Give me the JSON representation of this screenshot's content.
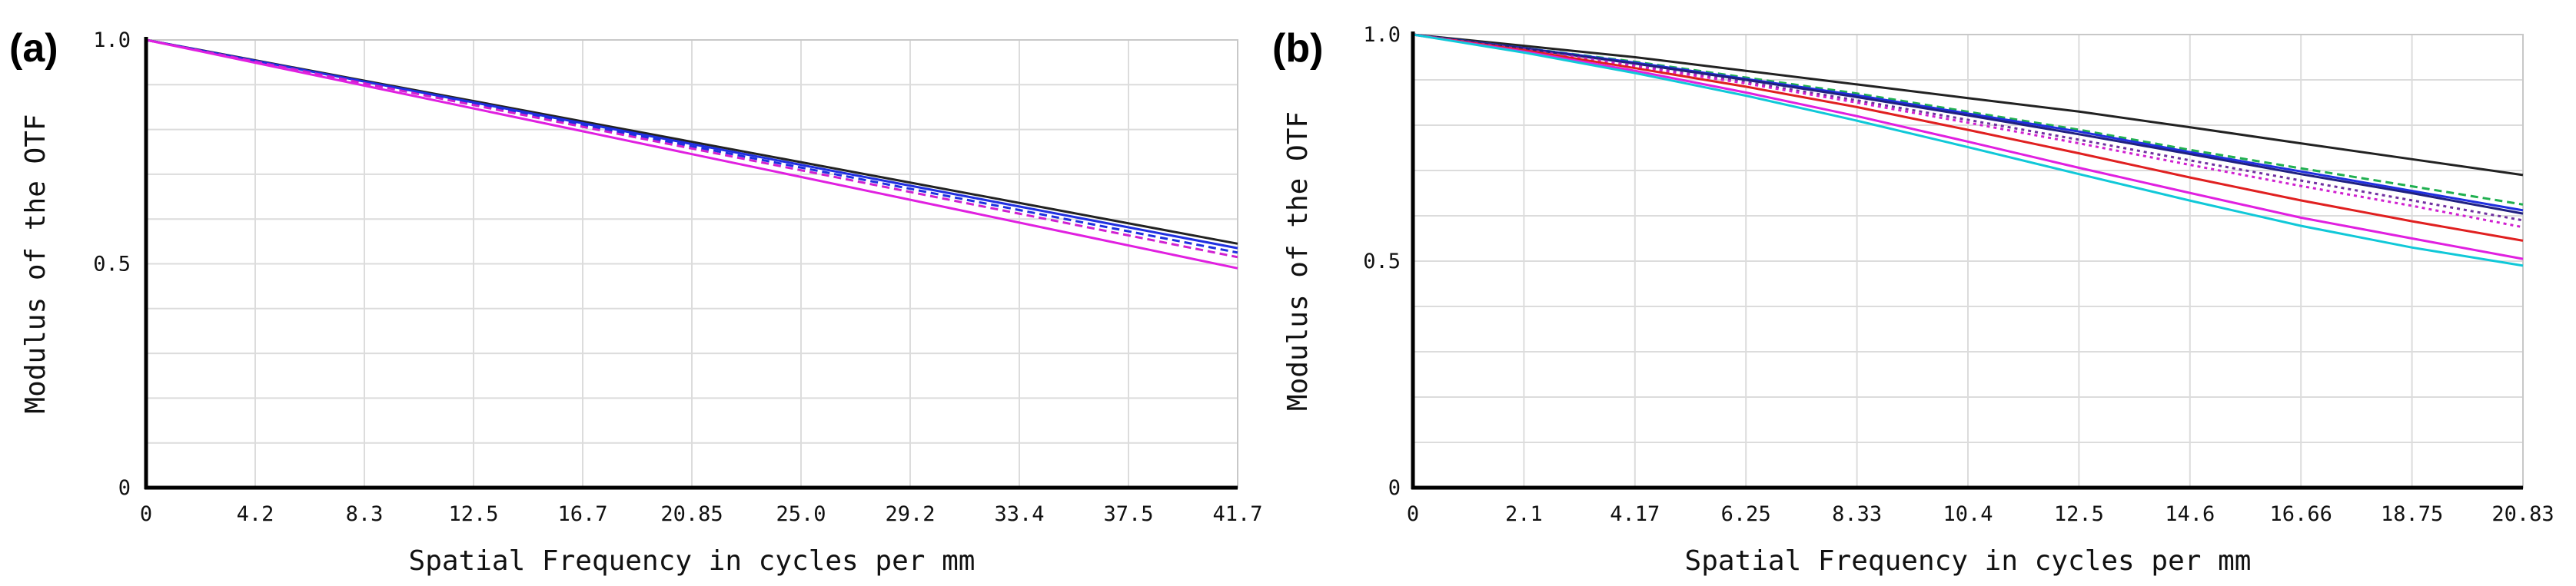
{
  "chart_data": [
    {
      "type": "line",
      "panel_label": "(a)",
      "xlabel": "Spatial Frequency in cycles per mm",
      "ylabel": "Modulus of the OTF",
      "xlim": [
        0,
        41.7
      ],
      "ylim": [
        0,
        1.0
      ],
      "x_ticks": [
        "0",
        "4.2",
        "8.3",
        "12.5",
        "16.7",
        "20.85",
        "25.0",
        "29.2",
        "33.4",
        "37.5",
        "41.7"
      ],
      "y_ticks": [
        {
          "value": 0,
          "label": "0"
        },
        {
          "value": 0.5,
          "label": "0.5"
        },
        {
          "value": 1.0,
          "label": "1.0"
        }
      ],
      "grid": true,
      "series": [
        {
          "name": "black",
          "color": "#222222",
          "dash": "solid",
          "x": [
            0,
            41.7
          ],
          "y": [
            1.0,
            0.545
          ]
        },
        {
          "name": "blue",
          "color": "#1f2fe0",
          "dash": "solid",
          "x": [
            0,
            41.7
          ],
          "y": [
            1.0,
            0.535
          ]
        },
        {
          "name": "blue-dashed",
          "color": "#1f2fe0",
          "dash": "dashed",
          "x": [
            0,
            41.7
          ],
          "y": [
            1.0,
            0.525
          ]
        },
        {
          "name": "magenta-dashed",
          "color": "#d020d0",
          "dash": "dashed",
          "x": [
            0,
            41.7
          ],
          "y": [
            1.0,
            0.515
          ]
        },
        {
          "name": "magenta",
          "color": "#e020e0",
          "dash": "solid",
          "x": [
            0,
            41.7
          ],
          "y": [
            1.0,
            0.49
          ]
        }
      ]
    },
    {
      "type": "line",
      "panel_label": "(b)",
      "xlabel": "Spatial Frequency in cycles per mm",
      "ylabel": "Modulus of the OTF",
      "xlim": [
        0,
        20.83
      ],
      "ylim": [
        0,
        1.0
      ],
      "x_ticks": [
        "0",
        "2.1",
        "4.17",
        "6.25",
        "8.33",
        "10.4",
        "12.5",
        "14.6",
        "16.66",
        "18.75",
        "20.83"
      ],
      "y_ticks": [
        {
          "value": 0,
          "label": "0"
        },
        {
          "value": 0.5,
          "label": "0.5"
        },
        {
          "value": 1.0,
          "label": "1.0"
        }
      ],
      "grid": true,
      "series": [
        {
          "name": "black",
          "color": "#222222",
          "dash": "solid",
          "x": [
            0,
            2.1,
            4.17,
            6.25,
            8.33,
            10.4,
            12.5,
            14.6,
            16.66,
            18.75,
            20.83
          ],
          "y": [
            1.0,
            0.975,
            0.95,
            0.92,
            0.89,
            0.86,
            0.83,
            0.795,
            0.76,
            0.725,
            0.69
          ]
        },
        {
          "name": "green-dashed",
          "color": "#20b050",
          "dash": "dashed",
          "x": [
            0,
            2.1,
            4.17,
            6.25,
            8.33,
            10.4,
            12.5,
            14.6,
            16.66,
            18.75,
            20.83
          ],
          "y": [
            1.0,
            0.97,
            0.94,
            0.905,
            0.87,
            0.83,
            0.79,
            0.745,
            0.705,
            0.665,
            0.625
          ]
        },
        {
          "name": "blue",
          "color": "#1f2fe0",
          "dash": "solid",
          "x": [
            0,
            2.1,
            4.17,
            6.25,
            8.33,
            10.4,
            12.5,
            14.6,
            16.66,
            18.75,
            20.83
          ],
          "y": [
            1.0,
            0.97,
            0.938,
            0.902,
            0.866,
            0.826,
            0.786,
            0.74,
            0.698,
            0.655,
            0.612
          ]
        },
        {
          "name": "navy",
          "color": "#202080",
          "dash": "solid",
          "x": [
            0,
            2.1,
            4.17,
            6.25,
            8.33,
            10.4,
            12.5,
            14.6,
            16.66,
            18.75,
            20.83
          ],
          "y": [
            1.0,
            0.969,
            0.936,
            0.9,
            0.862,
            0.822,
            0.78,
            0.736,
            0.692,
            0.65,
            0.605
          ]
        },
        {
          "name": "purple-dotted",
          "color": "#7030a0",
          "dash": "dotted",
          "x": [
            0,
            2.1,
            4.17,
            6.25,
            8.33,
            10.4,
            12.5,
            14.6,
            16.66,
            18.75,
            20.83
          ],
          "y": [
            1.0,
            0.967,
            0.932,
            0.895,
            0.855,
            0.812,
            0.768,
            0.722,
            0.678,
            0.634,
            0.59
          ]
        },
        {
          "name": "magenta-dotted",
          "color": "#d020d0",
          "dash": "dotted",
          "x": [
            0,
            2.1,
            4.17,
            6.25,
            8.33,
            10.4,
            12.5,
            14.6,
            16.66,
            18.75,
            20.83
          ],
          "y": [
            1.0,
            0.966,
            0.93,
            0.892,
            0.85,
            0.806,
            0.76,
            0.712,
            0.666,
            0.622,
            0.575
          ]
        },
        {
          "name": "red",
          "color": "#e02020",
          "dash": "solid",
          "x": [
            0,
            2.1,
            4.17,
            6.25,
            8.33,
            10.4,
            12.5,
            14.6,
            16.66,
            18.75,
            20.83
          ],
          "y": [
            1.0,
            0.965,
            0.926,
            0.885,
            0.84,
            0.79,
            0.738,
            0.684,
            0.634,
            0.588,
            0.545
          ]
        },
        {
          "name": "magenta",
          "color": "#e020e0",
          "dash": "solid",
          "x": [
            0,
            2.1,
            4.17,
            6.25,
            8.33,
            10.4,
            12.5,
            14.6,
            16.66,
            18.75,
            20.83
          ],
          "y": [
            1.0,
            0.962,
            0.92,
            0.872,
            0.82,
            0.764,
            0.706,
            0.65,
            0.596,
            0.55,
            0.505
          ]
        },
        {
          "name": "cyan",
          "color": "#10c8d8",
          "dash": "solid",
          "x": [
            0,
            2.1,
            4.17,
            6.25,
            8.33,
            10.4,
            12.5,
            14.6,
            16.66,
            18.75,
            20.83
          ],
          "y": [
            1.0,
            0.96,
            0.915,
            0.865,
            0.81,
            0.752,
            0.692,
            0.633,
            0.578,
            0.53,
            0.49
          ]
        }
      ]
    }
  ]
}
